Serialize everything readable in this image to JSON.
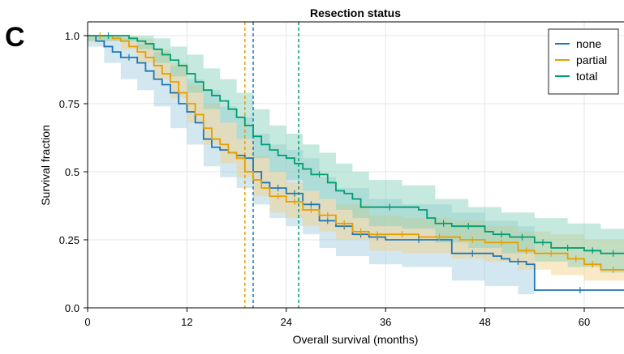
{
  "panel_label": "C",
  "chart_data": {
    "type": "line",
    "subtype": "kaplan-meier",
    "title": "Resection status",
    "xlabel": "Overall survival (months)",
    "ylabel": "Survival fraction",
    "xlim": [
      0,
      65
    ],
    "ylim": [
      0,
      1.0
    ],
    "xticks": [
      0,
      12,
      24,
      36,
      48,
      60
    ],
    "yticks": [
      0.0,
      0.25,
      0.5,
      0.75,
      1.0
    ],
    "xtick_labels": [
      "0",
      "12",
      "24",
      "36",
      "48",
      "60"
    ],
    "ytick_labels": [
      "0.0",
      "0.25",
      "0.5",
      "0.75",
      "1.0"
    ],
    "grid": true,
    "legend_position": "top-right",
    "series": [
      {
        "name": "none",
        "color": "#1f77b4",
        "band_color": "#9ecae1",
        "median": 20.0,
        "steps": [
          [
            0,
            1.0
          ],
          [
            1,
            0.98
          ],
          [
            2,
            0.96
          ],
          [
            3,
            0.94
          ],
          [
            4,
            0.92
          ],
          [
            6,
            0.9
          ],
          [
            7,
            0.87
          ],
          [
            8,
            0.84
          ],
          [
            9,
            0.82
          ],
          [
            10,
            0.79
          ],
          [
            11,
            0.75
          ],
          [
            12,
            0.72
          ],
          [
            13,
            0.68
          ],
          [
            14,
            0.62
          ],
          [
            15,
            0.59
          ],
          [
            16,
            0.58
          ],
          [
            17,
            0.57
          ],
          [
            18,
            0.56
          ],
          [
            19,
            0.55
          ],
          [
            20,
            0.5
          ],
          [
            21,
            0.46
          ],
          [
            22,
            0.44
          ],
          [
            24,
            0.42
          ],
          [
            26,
            0.38
          ],
          [
            28,
            0.32
          ],
          [
            30,
            0.3
          ],
          [
            32,
            0.27
          ],
          [
            34,
            0.26
          ],
          [
            36,
            0.25
          ],
          [
            44,
            0.2
          ],
          [
            49,
            0.19
          ],
          [
            50,
            0.18
          ],
          [
            51,
            0.17
          ],
          [
            53,
            0.16
          ],
          [
            54,
            0.065
          ],
          [
            65,
            0.065
          ]
        ],
        "lower": [
          [
            0,
            0.96
          ],
          [
            2,
            0.9
          ],
          [
            4,
            0.84
          ],
          [
            6,
            0.8
          ],
          [
            8,
            0.74
          ],
          [
            10,
            0.66
          ],
          [
            12,
            0.6
          ],
          [
            14,
            0.52
          ],
          [
            16,
            0.48
          ],
          [
            18,
            0.44
          ],
          [
            20,
            0.38
          ],
          [
            22,
            0.33
          ],
          [
            24,
            0.3
          ],
          [
            26,
            0.27
          ],
          [
            28,
            0.22
          ],
          [
            30,
            0.19
          ],
          [
            34,
            0.16
          ],
          [
            38,
            0.15
          ],
          [
            44,
            0.1
          ],
          [
            48,
            0.08
          ],
          [
            52,
            0.05
          ],
          [
            54,
            0.0
          ]
        ],
        "upper": [
          [
            0,
            1.0
          ],
          [
            4,
            0.99
          ],
          [
            6,
            0.97
          ],
          [
            8,
            0.94
          ],
          [
            10,
            0.89
          ],
          [
            12,
            0.84
          ],
          [
            14,
            0.8
          ],
          [
            16,
            0.74
          ],
          [
            18,
            0.7
          ],
          [
            20,
            0.64
          ],
          [
            22,
            0.6
          ],
          [
            24,
            0.58
          ],
          [
            26,
            0.55
          ],
          [
            28,
            0.48
          ],
          [
            30,
            0.44
          ],
          [
            34,
            0.4
          ],
          [
            38,
            0.38
          ],
          [
            44,
            0.35
          ],
          [
            48,
            0.32
          ],
          [
            52,
            0.3
          ],
          [
            54,
            0.28
          ]
        ]
      },
      {
        "name": "partial",
        "color": "#e69f00",
        "band_color": "#f5cf80",
        "median": 19.0,
        "steps": [
          [
            0,
            1.0
          ],
          [
            3,
            0.99
          ],
          [
            4,
            0.98
          ],
          [
            5,
            0.96
          ],
          [
            6,
            0.94
          ],
          [
            7,
            0.92
          ],
          [
            8,
            0.89
          ],
          [
            9,
            0.86
          ],
          [
            10,
            0.83
          ],
          [
            11,
            0.79
          ],
          [
            12,
            0.75
          ],
          [
            13,
            0.71
          ],
          [
            14,
            0.66
          ],
          [
            15,
            0.62
          ],
          [
            16,
            0.6
          ],
          [
            17,
            0.57
          ],
          [
            18,
            0.55
          ],
          [
            19,
            0.5
          ],
          [
            20,
            0.47
          ],
          [
            21,
            0.44
          ],
          [
            22,
            0.41
          ],
          [
            24,
            0.39
          ],
          [
            26,
            0.36
          ],
          [
            28,
            0.34
          ],
          [
            30,
            0.31
          ],
          [
            32,
            0.28
          ],
          [
            34,
            0.27
          ],
          [
            36,
            0.27
          ],
          [
            40,
            0.26
          ],
          [
            45,
            0.25
          ],
          [
            48,
            0.24
          ],
          [
            52,
            0.21
          ],
          [
            54,
            0.2
          ],
          [
            58,
            0.18
          ],
          [
            60,
            0.16
          ],
          [
            62,
            0.14
          ],
          [
            65,
            0.14
          ]
        ],
        "lower": [
          [
            0,
            0.98
          ],
          [
            4,
            0.95
          ],
          [
            6,
            0.9
          ],
          [
            8,
            0.84
          ],
          [
            10,
            0.77
          ],
          [
            12,
            0.68
          ],
          [
            14,
            0.6
          ],
          [
            16,
            0.53
          ],
          [
            18,
            0.48
          ],
          [
            20,
            0.41
          ],
          [
            22,
            0.35
          ],
          [
            24,
            0.33
          ],
          [
            26,
            0.3
          ],
          [
            28,
            0.28
          ],
          [
            30,
            0.25
          ],
          [
            34,
            0.21
          ],
          [
            38,
            0.2
          ],
          [
            44,
            0.18
          ],
          [
            48,
            0.17
          ],
          [
            52,
            0.14
          ],
          [
            56,
            0.12
          ],
          [
            60,
            0.1
          ],
          [
            65,
            0.07
          ]
        ],
        "upper": [
          [
            0,
            1.0
          ],
          [
            6,
            0.99
          ],
          [
            8,
            0.95
          ],
          [
            10,
            0.9
          ],
          [
            12,
            0.82
          ],
          [
            14,
            0.75
          ],
          [
            16,
            0.68
          ],
          [
            18,
            0.62
          ],
          [
            20,
            0.56
          ],
          [
            22,
            0.5
          ],
          [
            24,
            0.46
          ],
          [
            26,
            0.43
          ],
          [
            28,
            0.4
          ],
          [
            30,
            0.38
          ],
          [
            34,
            0.34
          ],
          [
            38,
            0.33
          ],
          [
            44,
            0.32
          ],
          [
            48,
            0.3
          ],
          [
            52,
            0.28
          ],
          [
            56,
            0.27
          ],
          [
            60,
            0.25
          ],
          [
            65,
            0.23
          ]
        ]
      },
      {
        "name": "total",
        "color": "#009e73",
        "band_color": "#80cfb9",
        "median": 25.5,
        "steps": [
          [
            0,
            1.0
          ],
          [
            5,
            0.99
          ],
          [
            6,
            0.98
          ],
          [
            7,
            0.97
          ],
          [
            8,
            0.95
          ],
          [
            9,
            0.93
          ],
          [
            10,
            0.91
          ],
          [
            11,
            0.89
          ],
          [
            12,
            0.86
          ],
          [
            13,
            0.83
          ],
          [
            14,
            0.8
          ],
          [
            15,
            0.78
          ],
          [
            16,
            0.76
          ],
          [
            17,
            0.73
          ],
          [
            18,
            0.7
          ],
          [
            19,
            0.67
          ],
          [
            20,
            0.63
          ],
          [
            21,
            0.6
          ],
          [
            22,
            0.58
          ],
          [
            23,
            0.56
          ],
          [
            24,
            0.55
          ],
          [
            25,
            0.53
          ],
          [
            26,
            0.51
          ],
          [
            27,
            0.49
          ],
          [
            29,
            0.46
          ],
          [
            30,
            0.43
          ],
          [
            31,
            0.42
          ],
          [
            32,
            0.4
          ],
          [
            33,
            0.37
          ],
          [
            40,
            0.36
          ],
          [
            41,
            0.33
          ],
          [
            42,
            0.31
          ],
          [
            44,
            0.3
          ],
          [
            48,
            0.28
          ],
          [
            49,
            0.27
          ],
          [
            51,
            0.26
          ],
          [
            54,
            0.24
          ],
          [
            56,
            0.22
          ],
          [
            60,
            0.21
          ],
          [
            62,
            0.2
          ],
          [
            65,
            0.2
          ]
        ],
        "lower": [
          [
            0,
            0.98
          ],
          [
            6,
            0.95
          ],
          [
            8,
            0.9
          ],
          [
            10,
            0.85
          ],
          [
            12,
            0.79
          ],
          [
            14,
            0.73
          ],
          [
            16,
            0.68
          ],
          [
            18,
            0.62
          ],
          [
            20,
            0.55
          ],
          [
            22,
            0.5
          ],
          [
            24,
            0.47
          ],
          [
            26,
            0.43
          ],
          [
            28,
            0.4
          ],
          [
            30,
            0.36
          ],
          [
            32,
            0.33
          ],
          [
            34,
            0.3
          ],
          [
            38,
            0.29
          ],
          [
            42,
            0.24
          ],
          [
            46,
            0.22
          ],
          [
            50,
            0.2
          ],
          [
            54,
            0.17
          ],
          [
            58,
            0.15
          ],
          [
            62,
            0.13
          ],
          [
            65,
            0.12
          ]
        ],
        "upper": [
          [
            0,
            1.0
          ],
          [
            8,
            0.99
          ],
          [
            10,
            0.96
          ],
          [
            12,
            0.93
          ],
          [
            14,
            0.88
          ],
          [
            16,
            0.84
          ],
          [
            18,
            0.79
          ],
          [
            20,
            0.73
          ],
          [
            22,
            0.67
          ],
          [
            24,
            0.64
          ],
          [
            26,
            0.6
          ],
          [
            28,
            0.57
          ],
          [
            30,
            0.53
          ],
          [
            32,
            0.5
          ],
          [
            34,
            0.47
          ],
          [
            38,
            0.45
          ],
          [
            42,
            0.4
          ],
          [
            46,
            0.37
          ],
          [
            50,
            0.35
          ],
          [
            54,
            0.33
          ],
          [
            58,
            0.31
          ],
          [
            62,
            0.29
          ],
          [
            65,
            0.29
          ]
        ]
      }
    ]
  }
}
